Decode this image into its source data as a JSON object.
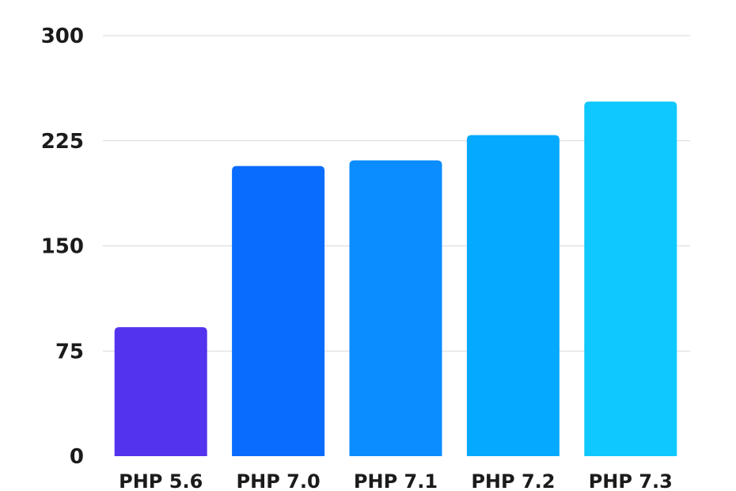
{
  "chart_data": {
    "type": "bar",
    "categories": [
      "PHP 5.6",
      "PHP 7.0",
      "PHP 7.1",
      "PHP 7.2",
      "PHP 7.3"
    ],
    "values": [
      92,
      207,
      211,
      229,
      253
    ],
    "title": "",
    "xlabel": "",
    "ylabel": "",
    "ylim": [
      0,
      300
    ],
    "yticks": [
      0,
      75,
      150,
      225,
      300
    ],
    "grid": true,
    "colors": [
      "#5333ed",
      "#0a6cff",
      "#0b8cff",
      "#05a9ff",
      "#0fc8fd"
    ]
  }
}
